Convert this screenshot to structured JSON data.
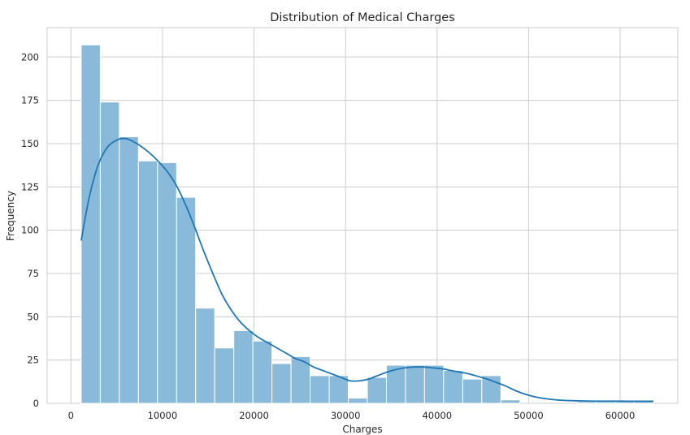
{
  "chart_data": {
    "type": "bar",
    "title": "Distribution of Medical Charges",
    "xlabel": "Charges",
    "ylabel": "Frequency",
    "xlim": [
      -2600,
      66300
    ],
    "ylim": [
      0,
      217
    ],
    "x_ticks": [
      0,
      10000,
      20000,
      30000,
      40000,
      50000,
      60000
    ],
    "y_ticks": [
      0,
      25,
      50,
      75,
      100,
      125,
      150,
      175,
      200
    ],
    "grid": true,
    "bin_edges": [
      1122,
      3206,
      5290,
      7374,
      9458,
      11542,
      13626,
      15710,
      17794,
      19878,
      21962,
      24046,
      26130,
      28214,
      30298,
      32382,
      34466,
      36550,
      38634,
      40718,
      42802,
      44886,
      46970,
      49054,
      51138,
      53222,
      55306,
      57390,
      59474,
      61558,
      63642
    ],
    "values": [
      207,
      174,
      154,
      140,
      139,
      119,
      55,
      32,
      42,
      36,
      23,
      27,
      16,
      16,
      3,
      15,
      22,
      22,
      22,
      19,
      14,
      16,
      2,
      0,
      0,
      0,
      1,
      1,
      1,
      1
    ],
    "series": [
      {
        "type": "kde",
        "x": [
          1122,
          2000,
          3000,
          4000,
          5000,
          5800,
          6500,
          7500,
          8500,
          9500,
          10500,
          11500,
          12500,
          13500,
          14500,
          15500,
          16500,
          17500,
          18500,
          19500,
          20500,
          21500,
          22500,
          23500,
          24500,
          25500,
          26500,
          27500,
          28500,
          29500,
          30500,
          31500,
          32500,
          33500,
          34500,
          35500,
          36500,
          37500,
          38500,
          39500,
          40500,
          41500,
          42500,
          43500,
          44500,
          45500,
          46500,
          47500,
          48500,
          49500,
          50500,
          51500,
          52500,
          53500,
          55000,
          57000,
          59000,
          61000,
          63642
        ],
        "y": [
          94,
          119,
          138,
          148,
          152,
          153,
          152,
          149,
          145,
          140,
          134,
          126,
          115,
          102,
          88,
          75,
          63,
          54,
          47,
          42,
          38,
          35,
          32,
          29,
          26,
          24,
          21,
          19,
          17,
          15,
          13,
          13,
          14,
          16,
          18,
          19.5,
          20.5,
          21,
          21,
          20.5,
          20,
          19,
          18,
          17,
          15.5,
          14,
          12,
          10,
          7.5,
          5.5,
          4,
          3,
          2.3,
          1.8,
          1.5,
          1.3,
          1.3,
          1.2,
          1.2
        ]
      }
    ],
    "colors": {
      "bar": "#8abad9",
      "kde": "#1f77b4",
      "grid": "#cccccc",
      "edge": "#ffffff"
    }
  }
}
